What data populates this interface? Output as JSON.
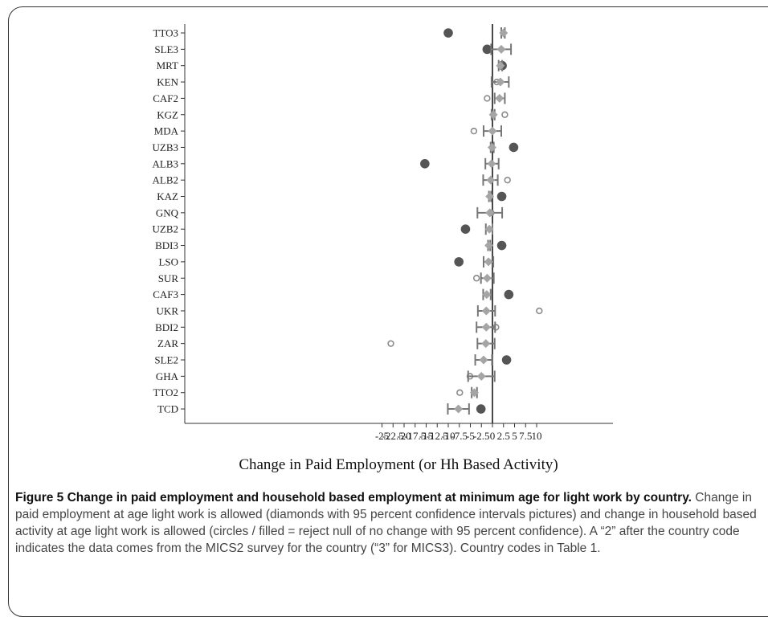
{
  "chart_data": {
    "type": "scatter",
    "xlabel": "Change in Paid Employment (or Hh Based Activity)",
    "xlim": [
      -27,
      11
    ],
    "xticks": [
      -25,
      -22.5,
      -20,
      -17.5,
      -15,
      -12.5,
      -10,
      -7.5,
      -5,
      -2.5,
      0,
      2.5,
      5,
      7.5,
      10
    ],
    "xtick_labels": [
      "-25",
      "-22.5",
      "-20",
      "-17.5",
      "-15",
      "-12.5",
      "-10",
      "-7.5",
      "-5",
      "-2.5",
      "0",
      "2.5",
      "5",
      "7.5",
      "10"
    ],
    "grid": false,
    "categories": [
      "TTO3",
      "SLE3",
      "MRT",
      "KEN",
      "CAF2",
      "KGZ",
      "MDA",
      "UZB3",
      "ALB3",
      "ALB2",
      "KAZ",
      "GNQ",
      "UZB2",
      "BDI3",
      "LSO",
      "SUR",
      "CAF3",
      "UKR",
      "BDI2",
      "ZAR",
      "SLE2",
      "GHA",
      "TTO2",
      "TCD"
    ],
    "paid_employment": [
      {
        "estimate": 2.5,
        "ci_low": 2.0,
        "ci_high": 2.8
      },
      {
        "estimate": 2.0,
        "ci_low": -0.3,
        "ci_high": 4.2
      },
      {
        "estimate": 1.8,
        "ci_low": 1.4,
        "ci_high": 2.2
      },
      {
        "estimate": 1.8,
        "ci_low": -0.2,
        "ci_high": 3.7
      },
      {
        "estimate": 1.6,
        "ci_low": 0.5,
        "ci_high": 2.8
      },
      {
        "estimate": 0.2,
        "ci_low": -0.2,
        "ci_high": 0.5
      },
      {
        "estimate": 0.0,
        "ci_low": -2.0,
        "ci_high": 2.0
      },
      {
        "estimate": -0.1,
        "ci_low": -0.4,
        "ci_high": 0.3
      },
      {
        "estimate": -0.2,
        "ci_low": -1.6,
        "ci_high": 1.4
      },
      {
        "estimate": -0.4,
        "ci_low": -2.1,
        "ci_high": 1.2
      },
      {
        "estimate": -0.6,
        "ci_low": -0.8,
        "ci_high": -0.3
      },
      {
        "estimate": -0.6,
        "ci_low": -3.4,
        "ci_high": 2.2
      },
      {
        "estimate": -0.7,
        "ci_low": -1.5,
        "ci_high": 0.0
      },
      {
        "estimate": -0.8,
        "ci_low": -1.0,
        "ci_high": -0.5
      },
      {
        "estimate": -0.9,
        "ci_low": -2.0,
        "ci_high": 0.2
      },
      {
        "estimate": -1.2,
        "ci_low": -2.6,
        "ci_high": 0.3
      },
      {
        "estimate": -1.3,
        "ci_low": -2.1,
        "ci_high": -0.4
      },
      {
        "estimate": -1.4,
        "ci_low": -3.3,
        "ci_high": 0.6
      },
      {
        "estimate": -1.4,
        "ci_low": -3.6,
        "ci_high": 0.6
      },
      {
        "estimate": -1.5,
        "ci_low": -3.4,
        "ci_high": 0.5
      },
      {
        "estimate": -2.0,
        "ci_low": -3.9,
        "ci_high": -0.1
      },
      {
        "estimate": -2.5,
        "ci_low": -5.5,
        "ci_high": 0.5
      },
      {
        "estimate": -4.1,
        "ci_low": -4.7,
        "ci_high": -3.5
      },
      {
        "estimate": -7.7,
        "ci_low": -10.1,
        "ci_high": -5.3
      }
    ],
    "household_activity": [
      {
        "value": -10.0,
        "significant": true
      },
      {
        "value": -1.2,
        "significant": true
      },
      {
        "value": 2.2,
        "significant": true
      },
      {
        "value": 1.0,
        "significant": false
      },
      {
        "value": -1.2,
        "significant": false
      },
      {
        "value": 2.8,
        "significant": false
      },
      {
        "value": -4.2,
        "significant": false
      },
      {
        "value": 4.8,
        "significant": true
      },
      {
        "value": -15.3,
        "significant": true
      },
      {
        "value": 3.4,
        "significant": false
      },
      {
        "value": 2.1,
        "significant": true
      },
      {
        "value": -0.3,
        "significant": false
      },
      {
        "value": -6.1,
        "significant": true
      },
      {
        "value": 2.1,
        "significant": true
      },
      {
        "value": -7.6,
        "significant": true
      },
      {
        "value": -3.6,
        "significant": false
      },
      {
        "value": 3.7,
        "significant": true
      },
      {
        "value": 10.6,
        "significant": false
      },
      {
        "value": 0.8,
        "significant": false
      },
      {
        "value": -23.0,
        "significant": false
      },
      {
        "value": 3.2,
        "significant": true
      },
      {
        "value": -5.1,
        "significant": false
      },
      {
        "value": -7.4,
        "significant": false
      },
      {
        "value": -2.6,
        "significant": true
      }
    ],
    "colors": {
      "diamond": "#a5a5a5",
      "errorbar": "#777777",
      "filled_circle": "#555555",
      "open_circle": "#8a8a8a",
      "axis": "#333333"
    }
  },
  "caption": {
    "title": "Figure 5 Change in paid employment and household based employment at minimum age for light work by country.",
    "body": " Change in paid employment at age light work is allowed (diamonds with 95 percent confidence intervals pictures) and change in household based activity at age light work is allowed (circles / filled = reject null of no change with 95 percent confidence). A “2” after the country code indicates the data comes from the MICS2 survey for the country (“3” for MICS3). Country codes in Table 1."
  }
}
